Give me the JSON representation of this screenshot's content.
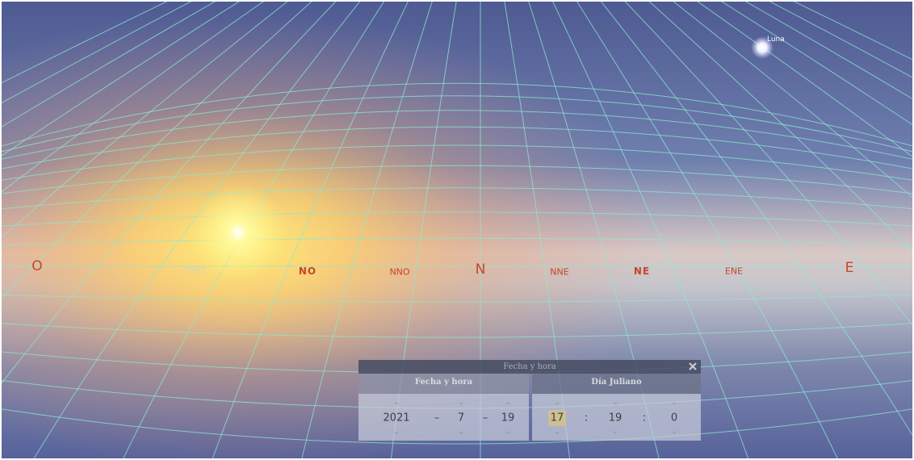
{
  "compass": [
    "O",
    "ONO",
    "NO",
    "NNO",
    "N",
    "NNE",
    "NE",
    "ENE",
    "E"
  ],
  "moon_label": "Luna",
  "dialog": {
    "title": "Fecha y hora",
    "tabs": [
      "Fecha y hora",
      "Día Juliano"
    ],
    "date": {
      "year": 2021,
      "month": 7,
      "day": 19,
      "separator": "–"
    },
    "time": {
      "hour": 17,
      "minute": 19,
      "second": 0,
      "separator": ":"
    }
  }
}
